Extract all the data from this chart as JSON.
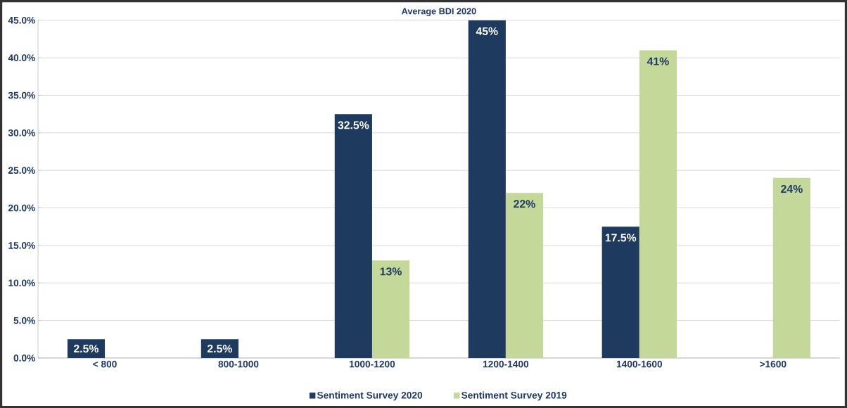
{
  "chart_data": {
    "type": "bar",
    "title": "Average BDI 2020",
    "categories": [
      "< 800",
      "800-1000",
      "1000-1200",
      "1200-1400",
      "1400-1600",
      ">1600"
    ],
    "series": [
      {
        "name": "Sentiment Survey 2020",
        "color": "#1f3a5f",
        "values": [
          2.5,
          2.5,
          32.5,
          45,
          17.5,
          0
        ],
        "value_labels": [
          "2.5%",
          "2.5%",
          "32.5%",
          "45%",
          "17.5%",
          null
        ]
      },
      {
        "name": "Sentiment Survey 2019",
        "color": "#c4d89a",
        "values": [
          null,
          null,
          13,
          22,
          41,
          24
        ],
        "value_labels": [
          null,
          null,
          "13%",
          "22%",
          "41%",
          "24%"
        ]
      }
    ],
    "ylim": [
      0,
      45
    ],
    "yticks": [
      {
        "value": 0,
        "label": "0.0%"
      },
      {
        "value": 5,
        "label": "5.0%"
      },
      {
        "value": 10,
        "label": "10.0%"
      },
      {
        "value": 15,
        "label": "15.0%"
      },
      {
        "value": 20,
        "label": "20.0%"
      },
      {
        "value": 25,
        "label": "25.0%"
      },
      {
        "value": 30,
        "label": "30.0%"
      },
      {
        "value": 35,
        "label": "35.0%"
      },
      {
        "value": 40,
        "label": "40.0%"
      },
      {
        "value": 45,
        "label": "45.0%"
      }
    ],
    "grid": "y",
    "legend": "bottom"
  }
}
